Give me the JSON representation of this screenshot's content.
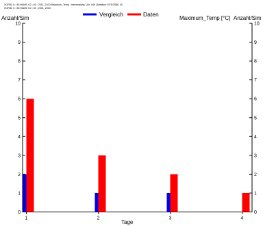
{
  "header": {
    "meta_line_1": "XGRID: b : 80.HAM5: K2 ; 60 ; 2011_2100:Maximum_Temp : mehrmals/gl. Ukr. 446 | Abfaktor: EF.EOBB | 40",
    "meta_line_2": "XGRID: b : 80.HAM5: K2 ; 60 ; 2001_2010:"
  },
  "legend": {
    "items": [
      {
        "label": "Vergleich",
        "color": "#0000ee"
      },
      {
        "label": "Daten",
        "color": "#ff0000"
      }
    ]
  },
  "axes": {
    "left_label": "Anzahl/Sim",
    "right_label": "Anzahl/Sim",
    "top_right_title": "Maximum_Temp [°C]",
    "x_label": "Tage"
  },
  "chart_data": {
    "type": "bar",
    "categories": [
      "1",
      "2",
      "3",
      "4"
    ],
    "series": [
      {
        "name": "Vergleich",
        "color": "#0000ee",
        "values": [
          2,
          1,
          1,
          0
        ]
      },
      {
        "name": "Daten",
        "color": "#ff0000",
        "values": [
          6,
          3,
          2,
          1
        ]
      }
    ],
    "xlabel": "Tage",
    "ylabel": "Anzahl/Sim",
    "y2label": "Anzahl/Sim",
    "title": "Maximum_Temp [°C]",
    "ylim": [
      0,
      10
    ],
    "yticks": [
      0,
      1,
      2,
      3,
      4,
      5,
      6,
      7,
      8,
      9,
      10
    ],
    "grid": false,
    "legend_position": "top-center"
  }
}
